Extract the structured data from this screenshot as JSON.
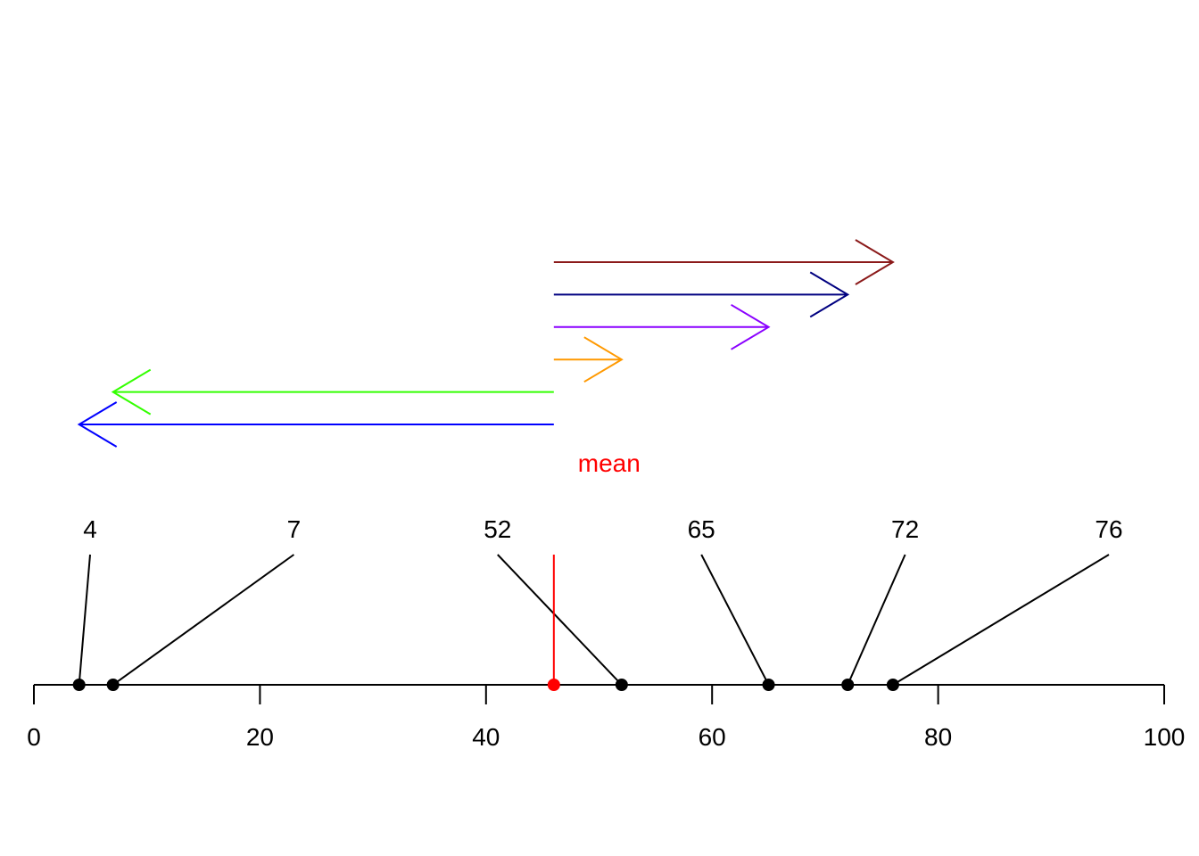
{
  "chart_data": {
    "type": "scatter",
    "xlim": [
      0,
      100
    ],
    "ticks": [
      "0",
      "20",
      "40",
      "60",
      "80",
      "100"
    ],
    "tick_values": [
      0,
      20,
      40,
      60,
      80,
      100
    ],
    "points": [
      {
        "x": 4,
        "label": "4"
      },
      {
        "x": 7,
        "label": "7"
      },
      {
        "x": 52,
        "label": "52"
      },
      {
        "x": 65,
        "label": "65"
      },
      {
        "x": 72,
        "label": "72"
      },
      {
        "x": 76,
        "label": "76"
      }
    ],
    "mean": {
      "x": 46,
      "label": "mean",
      "color": "#ff0000"
    },
    "deviation_arrows": [
      {
        "to": 76,
        "color": "#8b1a1a"
      },
      {
        "to": 72,
        "color": "#000080"
      },
      {
        "to": 65,
        "color": "#8a00ff"
      },
      {
        "to": 52,
        "color": "#ff9900"
      },
      {
        "to": 7,
        "color": "#33ff00"
      },
      {
        "to": 4,
        "color": "#0000ff"
      }
    ],
    "grid": false,
    "legend": "none"
  }
}
